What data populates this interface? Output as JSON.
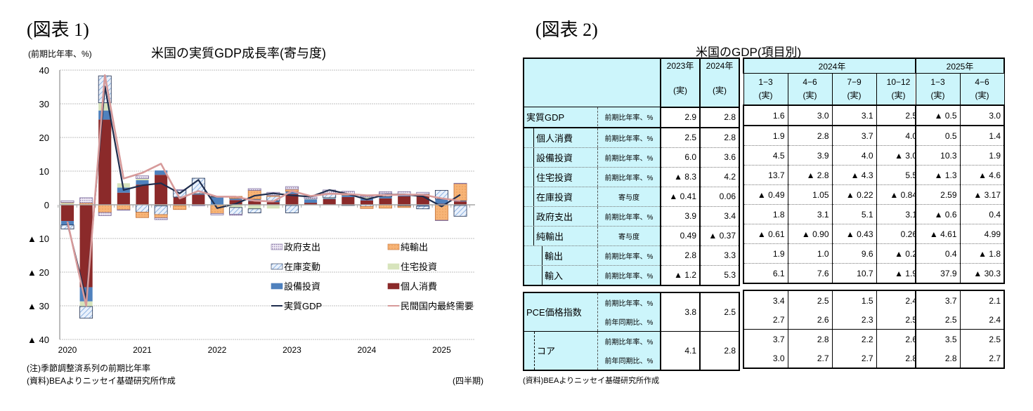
{
  "figure1": {
    "label": "(図表 1)",
    "title": "米国の実質GDP成長率(寄与度)",
    "ylabel": "(前期比年率、%)",
    "xlabel": "(四半期)",
    "note1": "(注)季節調整済系列の前期比年率",
    "note2": "(資料)BEAよりニッセイ基礎研究所作成",
    "yticks": [
      "40",
      "30",
      "20",
      "10",
      "0",
      "▲ 10",
      "▲ 20",
      "▲ 30",
      "▲ 40"
    ],
    "xticks": [
      "2020",
      "2021",
      "2022",
      "2023",
      "2024",
      "2025"
    ],
    "legend": [
      "政府支出",
      "純輸出",
      "在庫変動",
      "住宅投資",
      "設備投資",
      "個人消費",
      "実質GDP",
      "民間国内最終需要"
    ]
  },
  "chart_data": {
    "type": "bar",
    "title": "米国の実質GDP成長率(寄与度)",
    "xlabel": "(四半期)",
    "ylabel": "(前期比年率、%)",
    "ylim": [
      -40,
      40
    ],
    "grid": true,
    "legend_position": "inside-lower-right",
    "categories": [
      "2020Q1",
      "2020Q2",
      "2020Q3",
      "2020Q4",
      "2021Q1",
      "2021Q2",
      "2021Q3",
      "2021Q4",
      "2022Q1",
      "2022Q2",
      "2022Q3",
      "2022Q4",
      "2023Q1",
      "2023Q2",
      "2023Q3",
      "2023Q4",
      "2024Q1",
      "2024Q2",
      "2024Q3",
      "2024Q4",
      "2025Q1",
      "2025Q2"
    ],
    "series": [
      {
        "name": "個人消費",
        "kind": "stacked-bar",
        "color": "#8b2a2a",
        "values": [
          -4.8,
          -24.5,
          25.3,
          3.6,
          6.0,
          8.9,
          2.2,
          3.0,
          0.1,
          1.4,
          1.1,
          0.8,
          3.2,
          0.6,
          1.7,
          2.3,
          1.3,
          1.9,
          2.5,
          2.7,
          0.3,
          1.0
        ]
      },
      {
        "name": "設備投資",
        "kind": "stacked-bar",
        "color": "#4f81bd",
        "values": [
          -1.2,
          -4.2,
          2.7,
          1.5,
          1.3,
          1.3,
          0.1,
          0.2,
          2.1,
          0.5,
          0.6,
          0.4,
          0.8,
          1.0,
          0.2,
          0.5,
          0.5,
          0.5,
          0.5,
          -0.4,
          1.4,
          0.3
        ]
      },
      {
        "name": "住宅投資",
        "kind": "stacked-bar",
        "color": "#d7e4bc",
        "values": [
          0.6,
          -1.5,
          2.3,
          1.3,
          0.5,
          -0.3,
          -0.3,
          0.1,
          0.1,
          -0.8,
          -1.2,
          -1.1,
          -0.2,
          0.2,
          0.2,
          0.1,
          0.5,
          -0.1,
          -0.2,
          0.2,
          -0.0,
          -0.2
        ]
      },
      {
        "name": "在庫変動",
        "kind": "stacked-bar",
        "color": "#c5d9f1",
        "pattern": "diagonal",
        "values": [
          -1.2,
          -3.5,
          8.0,
          0.0,
          -2.2,
          -2.6,
          2.0,
          4.6,
          0.2,
          -2.0,
          -1.2,
          1.3,
          -2.2,
          0.0,
          1.3,
          -0.2,
          -0.5,
          1.0,
          -0.2,
          -0.8,
          2.6,
          -3.2
        ]
      },
      {
        "name": "純輸出",
        "kind": "stacked-bar",
        "color": "#fac090",
        "pattern": "dots",
        "values": [
          0.1,
          0.6,
          -2.3,
          -1.5,
          -1.6,
          -1.0,
          -1.1,
          -0.1,
          -2.6,
          0.6,
          2.6,
          0.3,
          0.6,
          0.0,
          0.0,
          0.3,
          -0.6,
          -0.9,
          -0.4,
          0.3,
          -4.6,
          5.0
        ]
      },
      {
        "name": "政府支出",
        "kind": "stacked-bar",
        "color": "#ccc0da",
        "pattern": "dense",
        "values": [
          0.5,
          1.5,
          -0.9,
          -0.1,
          0.8,
          -0.5,
          0.2,
          -0.2,
          -0.4,
          -0.3,
          0.5,
          0.9,
          0.8,
          0.5,
          1.0,
          0.8,
          0.3,
          0.5,
          0.9,
          0.5,
          -0.1,
          0.1
        ]
      },
      {
        "name": "実質GDP",
        "kind": "line",
        "color": "#1f2d4d",
        "values": [
          -5.5,
          -28.0,
          35.2,
          4.4,
          5.8,
          6.4,
          3.4,
          7.4,
          -1.0,
          0.3,
          2.7,
          3.4,
          2.8,
          2.4,
          4.4,
          3.2,
          1.6,
          3.0,
          3.1,
          2.5,
          -0.5,
          3.0
        ]
      },
      {
        "name": "民間国内最終需要",
        "kind": "line",
        "color": "#d79a9a",
        "values": [
          -5.0,
          -30.0,
          38.5,
          7.8,
          9.5,
          12.2,
          1.9,
          4.1,
          2.4,
          2.4,
          1.2,
          1.0,
          4.1,
          2.6,
          3.3,
          3.2,
          2.8,
          2.9,
          3.0,
          3.0,
          1.9,
          1.2
        ]
      }
    ]
  },
  "figure2": {
    "label": "(図表 2)",
    "title": "米国のGDP(項目別)",
    "source": "(資料)BEAよりニッセイ基礎研究所作成",
    "annual_headers": [
      "2023年",
      "2024年"
    ],
    "group_2024": "2024年",
    "group_2025": "2025年",
    "q2024": [
      "1−3",
      "4−6",
      "7−9",
      "10−12"
    ],
    "q2025": [
      "1−3",
      "4−6"
    ],
    "actual": "(実)",
    "rows": [
      {
        "item": "実質GDP",
        "unit": "前期比年率、%",
        "values": [
          "2.9",
          "2.8",
          "1.6",
          "3.0",
          "3.1",
          "2.5",
          "▲ 0.5",
          "3.0"
        ]
      },
      {
        "item": "個人消費",
        "unit": "前期比年率、%",
        "values": [
          "2.5",
          "2.8",
          "1.9",
          "2.8",
          "3.7",
          "4.0",
          "0.5",
          "1.4"
        ]
      },
      {
        "item": "設備投資",
        "unit": "前期比年率、%",
        "values": [
          "6.0",
          "3.6",
          "4.5",
          "3.9",
          "4.0",
          "▲ 3.0",
          "10.3",
          "1.9"
        ]
      },
      {
        "item": "住宅投資",
        "unit": "前期比年率、%",
        "values": [
          "▲ 8.3",
          "4.2",
          "13.7",
          "▲ 2.8",
          "▲ 4.3",
          "5.5",
          "▲ 1.3",
          "▲ 4.6"
        ]
      },
      {
        "item": "在庫投資",
        "unit": "寄与度",
        "values": [
          "▲ 0.41",
          "0.06",
          "▲ 0.49",
          "1.05",
          "▲ 0.22",
          "▲ 0.84",
          "2.59",
          "▲ 3.17"
        ]
      },
      {
        "item": "政府支出",
        "unit": "前期比年率、%",
        "values": [
          "3.9",
          "3.4",
          "1.8",
          "3.1",
          "5.1",
          "3.1",
          "▲ 0.6",
          "0.4"
        ]
      },
      {
        "item": "純輸出",
        "unit": "寄与度",
        "values": [
          "0.49",
          "▲ 0.37",
          "▲ 0.61",
          "▲ 0.90",
          "▲ 0.43",
          "0.26",
          "▲ 4.61",
          "4.99"
        ]
      },
      {
        "item": "輸出",
        "unit": "前期比年率、%",
        "values": [
          "2.8",
          "3.3",
          "1.9",
          "1.0",
          "9.6",
          "▲ 0.2",
          "0.4",
          "▲ 1.8"
        ]
      },
      {
        "item": "輸入",
        "unit": "前期比年率、%",
        "values": [
          "▲ 1.2",
          "5.3",
          "6.1",
          "7.6",
          "10.7",
          "▲ 1.9",
          "37.9",
          "▲ 30.3"
        ]
      }
    ],
    "pce": {
      "item": "PCE価格指数",
      "unit1": "前期比年率、%",
      "unit2": "前年同期比、%",
      "annual": [
        "3.8",
        "2.5"
      ],
      "q1": [
        "3.4",
        "2.5",
        "1.5",
        "2.4",
        "3.7",
        "2.1"
      ],
      "q2": [
        "2.7",
        "2.6",
        "2.3",
        "2.5",
        "2.5",
        "2.4"
      ]
    },
    "core": {
      "item": "コア",
      "unit1": "前期比年率、%",
      "unit2": "前年同期比、%",
      "annual": [
        "4.1",
        "2.8"
      ],
      "q1": [
        "3.7",
        "2.8",
        "2.2",
        "2.6",
        "3.5",
        "2.5"
      ],
      "q2": [
        "3.0",
        "2.7",
        "2.7",
        "2.8",
        "2.8",
        "2.7"
      ]
    }
  }
}
